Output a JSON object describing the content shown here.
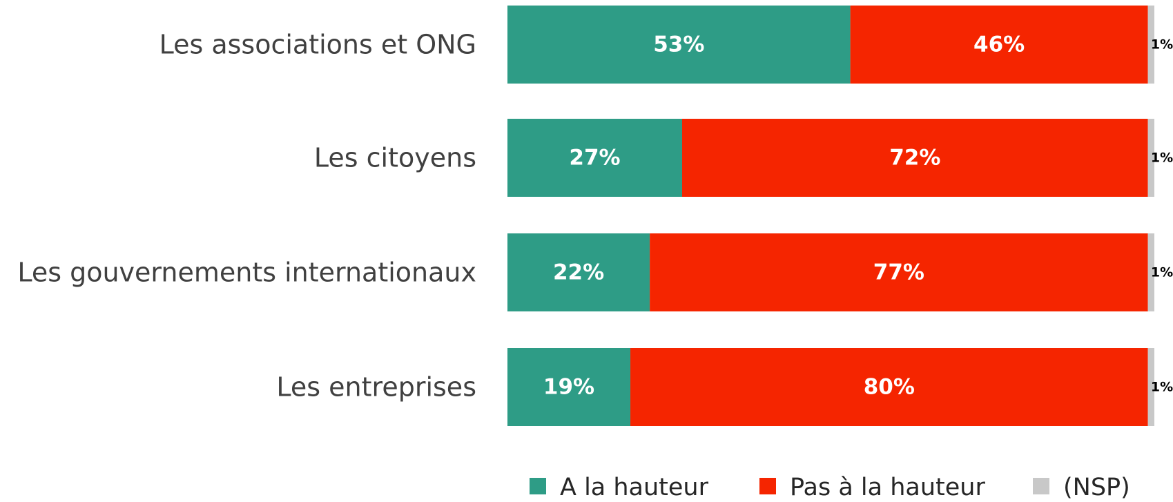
{
  "chart_data": {
    "type": "bar",
    "orientation": "horizontal",
    "stacked": true,
    "categories": [
      "Les associations et ONG",
      "Les citoyens",
      "Les gouvernements internationaux",
      "Les entreprises"
    ],
    "xlim": [
      0,
      100
    ],
    "series": [
      {
        "name": "A la hauteur",
        "color": "#2e9c86",
        "values": [
          53,
          27,
          22,
          19
        ],
        "value_labels": [
          "53%",
          "27%",
          "22%",
          "19%"
        ]
      },
      {
        "name": "Pas à la hauteur",
        "color": "#f52500",
        "values": [
          46,
          72,
          77,
          80
        ],
        "value_labels": [
          "46%",
          "72%",
          "77%",
          "80%"
        ]
      },
      {
        "name": "(NSP)",
        "color": "#c8c8c8",
        "values": [
          1,
          1,
          1,
          1
        ],
        "value_labels": [
          "1%",
          "1%",
          "1%",
          "1%"
        ]
      }
    ]
  }
}
